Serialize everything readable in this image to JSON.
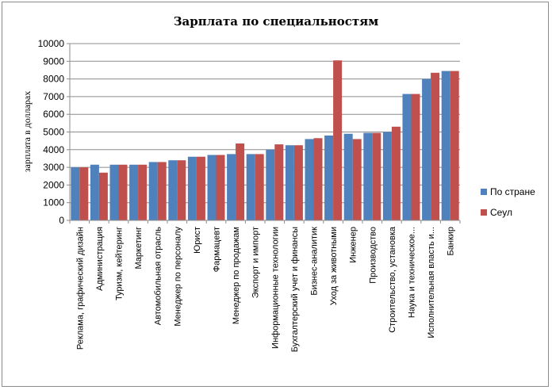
{
  "chart_data": {
    "type": "bar",
    "title": "Зарплата по специальностям",
    "xlabel": "",
    "ylabel": "зарплата в долларах",
    "ylim": [
      0,
      10000
    ],
    "yticks": [
      0,
      1000,
      2000,
      3000,
      4000,
      5000,
      6000,
      7000,
      8000,
      9000,
      10000
    ],
    "grid": true,
    "legend_position": "right",
    "categories": [
      "Реклама, графический дизайн",
      "Администрация",
      "Туризм, кейтеринг",
      "Маркетинг",
      "Автомобильная отрасль",
      "Менеджер по персоналу",
      "Юрист",
      "Фармацевт",
      "Менеджер по продажам",
      "Экспорт и импорт",
      "Информационные технологии",
      "Бухгалтерский учет и финансы",
      "Бизнес-аналитик",
      "Уход за животными",
      "Инженер",
      "Производство",
      "Строительство, установка",
      "Наука и техническое...",
      "Исполнительная власть и...",
      "Банкир"
    ],
    "series": [
      {
        "name": "По стране",
        "color": "#4f81bd",
        "values": [
          3000,
          3150,
          3150,
          3150,
          3300,
          3400,
          3600,
          3700,
          3750,
          3750,
          4000,
          4250,
          4600,
          4800,
          4900,
          4950,
          5000,
          7150,
          8000,
          8450
        ]
      },
      {
        "name": "Сеул",
        "color": "#c0504d",
        "values": [
          3000,
          2700,
          3150,
          3150,
          3300,
          3400,
          3600,
          3700,
          4350,
          3750,
          4300,
          4250,
          4650,
          9050,
          4600,
          4950,
          5300,
          7150,
          8350,
          8450
        ]
      }
    ]
  }
}
